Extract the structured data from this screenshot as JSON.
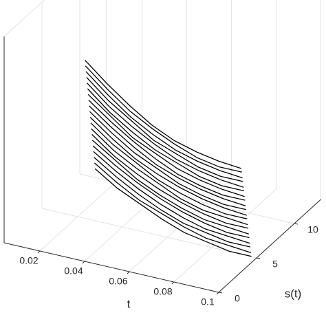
{
  "chart_data": {
    "type": "line3d",
    "xlabel": "t",
    "ylabel": "s(t)",
    "color": "#000000",
    "grid": true,
    "x": [
      0.03,
      0.04,
      0.05,
      0.06,
      0.07,
      0.08,
      0.09,
      0.1
    ],
    "xlim": [
      0.004,
      0.1
    ],
    "xticks": [
      0.02,
      0.04,
      0.06,
      0.08,
      0.1
    ],
    "ylim": [
      0,
      13.5
    ],
    "yticks": [
      0,
      5,
      10
    ],
    "zlim": [
      0,
      1
    ],
    "series": [
      {
        "s": 3.0,
        "values": [
          0.85,
          0.76,
          0.68,
          0.61,
          0.56,
          0.53,
          0.51,
          0.5
        ]
      },
      {
        "s": 3.07,
        "values": [
          0.82,
          0.73,
          0.65,
          0.59,
          0.54,
          0.5,
          0.48,
          0.48
        ]
      },
      {
        "s": 3.14,
        "values": [
          0.79,
          0.7,
          0.62,
          0.56,
          0.51,
          0.48,
          0.46,
          0.45
        ]
      },
      {
        "s": 3.21,
        "values": [
          0.76,
          0.67,
          0.6,
          0.53,
          0.49,
          0.45,
          0.43,
          0.43
        ]
      },
      {
        "s": 3.28,
        "values": [
          0.73,
          0.64,
          0.57,
          0.51,
          0.46,
          0.43,
          0.41,
          0.4
        ]
      },
      {
        "s": 3.35,
        "values": [
          0.7,
          0.61,
          0.54,
          0.48,
          0.44,
          0.4,
          0.38,
          0.38
        ]
      },
      {
        "s": 3.42,
        "values": [
          0.67,
          0.59,
          0.51,
          0.46,
          0.41,
          0.38,
          0.36,
          0.35
        ]
      },
      {
        "s": 3.49,
        "values": [
          0.64,
          0.56,
          0.49,
          0.43,
          0.38,
          0.35,
          0.33,
          0.33
        ]
      },
      {
        "s": 3.56,
        "values": [
          0.61,
          0.53,
          0.46,
          0.4,
          0.36,
          0.33,
          0.31,
          0.3
        ]
      },
      {
        "s": 3.63,
        "values": [
          0.58,
          0.5,
          0.43,
          0.38,
          0.33,
          0.3,
          0.28,
          0.28
        ]
      },
      {
        "s": 3.7,
        "values": [
          0.55,
          0.47,
          0.4,
          0.35,
          0.31,
          0.28,
          0.26,
          0.25
        ]
      },
      {
        "s": 3.77,
        "values": [
          0.52,
          0.44,
          0.38,
          0.32,
          0.28,
          0.25,
          0.23,
          0.23
        ]
      },
      {
        "s": 3.84,
        "values": [
          0.49,
          0.41,
          0.35,
          0.3,
          0.25,
          0.22,
          0.21,
          0.2
        ]
      },
      {
        "s": 3.91,
        "values": [
          0.46,
          0.38,
          0.32,
          0.27,
          0.23,
          0.2,
          0.18,
          0.18
        ]
      },
      {
        "s": 3.98,
        "values": [
          0.43,
          0.36,
          0.29,
          0.24,
          0.2,
          0.17,
          0.16,
          0.15
        ]
      },
      {
        "s": 4.05,
        "values": [
          0.4,
          0.33,
          0.27,
          0.22,
          0.18,
          0.15,
          0.13,
          0.13
        ]
      },
      {
        "s": 4.12,
        "values": [
          0.37,
          0.3,
          0.24,
          0.19,
          0.15,
          0.12,
          0.11,
          0.1
        ]
      },
      {
        "s": 4.19,
        "values": [
          0.34,
          0.27,
          0.21,
          0.16,
          0.12,
          0.1,
          0.08,
          0.08
        ]
      },
      {
        "s": 4.26,
        "values": [
          0.31,
          0.24,
          0.18,
          0.14,
          0.1,
          0.07,
          0.06,
          0.05
        ]
      },
      {
        "s": 4.33,
        "values": [
          0.28,
          0.21,
          0.16,
          0.11,
          0.07,
          0.05,
          0.03,
          0.03
        ]
      }
    ]
  }
}
